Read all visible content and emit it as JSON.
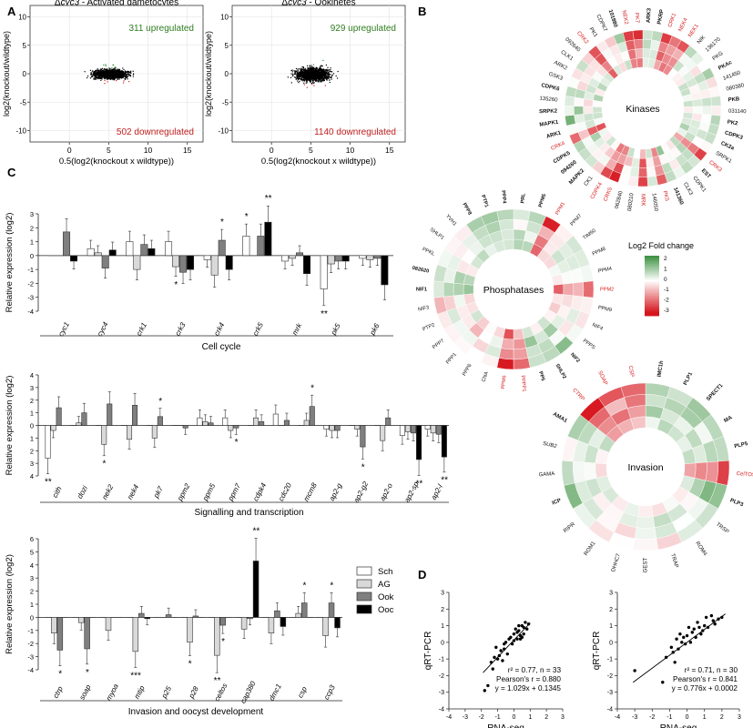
{
  "panel_labels": {
    "a": "A",
    "b": "B",
    "c": "C",
    "d": "D"
  },
  "panel_a": {
    "plots": [
      {
        "title_prefix": "Δ",
        "title_gene": "cyc3",
        "title_rest": " - Activated gametocytes",
        "up_text": "311 upregulated",
        "down_text": "502 downregulated",
        "ylabel": "log2(knockout/wildtype)",
        "xlabel": "0.5(log2(knockout x wildtype))",
        "xticks": [
          "0",
          "5",
          "10",
          "15"
        ],
        "yticks": [
          "10",
          "5",
          "0",
          "-5",
          "-10"
        ]
      },
      {
        "title_prefix": "Δ",
        "title_gene": "cyc3",
        "title_rest": " - Ookinetes",
        "up_text": "929 upregulated",
        "down_text": "1140 downregulated",
        "ylabel": "log2(knockout/wildtype)",
        "xlabel": "0.5(log2(knockout x wildtype))",
        "xticks": [
          "0",
          "5",
          "10",
          "15"
        ],
        "yticks": [
          "10",
          "5",
          "0",
          "-5",
          "-10"
        ]
      }
    ]
  },
  "panel_b": {
    "legend": {
      "title": "Log2 Fold change",
      "ticks": [
        "2",
        "1",
        "0",
        "-1",
        "-2",
        "-3"
      ]
    },
    "wheels": [
      {
        "name": "Kinases",
        "labels": [
          "ARK3",
          "PKRP",
          "CRK1",
          "NEK4",
          "NEK1",
          "NIK",
          "136170",
          "PKG",
          "PKAc",
          "141450",
          "080380",
          "PKB",
          "031140",
          "PK2",
          "CDPK3",
          "CK2a",
          "SRPK1",
          "CRK3",
          "EST",
          "CDPK1",
          "CLK3",
          "141360",
          "PK5",
          "146050",
          "MRK",
          "080210",
          "062840",
          "CRK5",
          "CDPK4",
          "CK1",
          "MAPK2",
          "094260",
          "CDPK5",
          "CRK4",
          "ARK1",
          "MAPK1",
          "SRPK2",
          "135260",
          "CDPK6",
          "GSK3",
          "ARK2",
          "CLK1",
          "092640",
          "CRK2",
          "PK1",
          "CDPK7",
          "101880",
          "NEK2",
          "PK7"
        ],
        "red": [
          "CRK1",
          "NEK4",
          "NEK1",
          "PK7",
          "NEK2",
          "CRK2",
          "CRK3",
          "PK5",
          "MRK",
          "CRK5",
          "CDPK4",
          "CRK4"
        ],
        "bold": [
          "ARK3",
          "PKRP",
          "PKAc",
          "PKB",
          "PK2",
          "CDPK3",
          "CK2a",
          "EST",
          "141360",
          "MAPK2",
          "094260",
          "CDPK5",
          "ARK1",
          "MAPK1",
          "SRPK2",
          "CDPK6",
          "101880"
        ]
      },
      {
        "name": "Phosphatases",
        "labels": [
          "PRL",
          "PPM5",
          "PPM1",
          "PPM7",
          "TIM50",
          "PPM8",
          "PPM4",
          "PPM2",
          "PPM9",
          "NIF4",
          "PPPS",
          "NIF2",
          "SHLP2",
          "PP5",
          "PPPP1",
          "PPM6",
          "CNA",
          "PPP6",
          "PPP1",
          "PPP7",
          "PTP2",
          "NIF3",
          "NIF1",
          "082620",
          "PPKL",
          "SHLP1",
          "YVH1",
          "PPP8",
          "PTP1",
          "PPP4"
        ],
        "red": [
          "PPM1",
          "PPM2",
          "PPPP1",
          "PPM6"
        ],
        "bold": [
          "PRL",
          "PPM5",
          "SHLP2",
          "NIF2",
          "PP5",
          "NIF1",
          "082620",
          "PPP8",
          "PTP1",
          "PPP4"
        ]
      },
      {
        "name": "Invasion",
        "labels": [
          "IMC1h",
          "PLP1",
          "SPECT1",
          "MA",
          "PLP5",
          "CelTOS",
          "PLP3",
          "TRSP",
          "ROM4",
          "TRAP",
          "GEST",
          "DHHC7",
          "ROM1",
          "RIPR",
          "ICP",
          "GAMA",
          "SUB2",
          "AMA1",
          "CTRP",
          "SOAP",
          "CSP"
        ],
        "red": [
          "CelTOS",
          "CTRP",
          "SOAP",
          "CSP"
        ],
        "bold": [
          "IMC1h",
          "PLP1",
          "SPECT1",
          "MA",
          "PLP5",
          "PLP3",
          "ICP",
          "AMA1"
        ]
      }
    ]
  },
  "panel_c": {
    "ylabel": "Relative expression (log2)",
    "ylabel_bottom": "Relative expression (log2)",
    "series": [
      "Sch",
      "AG",
      "Ook",
      "Ooc"
    ],
    "series_colors": [
      "#ffffff",
      "#d9d9d9",
      "#7f7f7f",
      "#000000"
    ],
    "groups": [
      {
        "title": "Cell cycle",
        "yticks": [
          "3",
          "2",
          "1",
          "0",
          "-1",
          "-2",
          "-3",
          "-4"
        ],
        "genes": [
          "cyc1",
          "cyc4",
          "crk1",
          "crk3",
          "crk4",
          "crk5",
          "mrk",
          "pk5",
          "pk6"
        ],
        "stars": [
          "*",
          "*",
          "**",
          "*",
          "**"
        ]
      },
      {
        "title": "Signalling and transcription",
        "yticks": [
          "4",
          "3",
          "2",
          "1",
          "0",
          "1",
          "2",
          "3",
          "4"
        ],
        "genes": [
          "cith",
          "dozi",
          "nek2",
          "nek4",
          "pk7",
          "ppm2",
          "ppm5",
          "ppm7",
          "cdpk4",
          "cdc20",
          "mcm8",
          "ap2-g",
          "ap2-g2",
          "ap2-o",
          "ap2-sp",
          "ap2-l"
        ],
        "stars": [
          "**",
          "*",
          "*",
          "*",
          "*",
          "*",
          "**",
          "**"
        ]
      },
      {
        "title": "Invasion and oocyst development",
        "yticks": [
          "6",
          "5",
          "4",
          "3",
          "2",
          "1",
          "0",
          "-1",
          "-2",
          "-3",
          "-4"
        ],
        "genes": [
          "ctrp",
          "soap",
          "myoa",
          "mtip",
          "p25",
          "p28",
          "celtos",
          "cap380",
          "dmc1",
          "csp",
          "ccp3"
        ],
        "stars": [
          "*",
          "*",
          "***",
          "*",
          "**",
          "*",
          "**",
          "*",
          "*"
        ]
      }
    ]
  },
  "chart_data": [
    {
      "type": "bar",
      "title": "Cell cycle",
      "ylabel": "Relative expression (log2)",
      "ylim": [
        -4,
        3
      ],
      "categories": [
        "cyc1",
        "cyc4",
        "crk1",
        "crk3",
        "crk4",
        "crk5",
        "mrk",
        "pk5",
        "pk6"
      ],
      "series": [
        {
          "name": "Sch",
          "values": [
            0.0,
            0.5,
            1.0,
            1.0,
            -0.3,
            1.4,
            -0.4,
            -2.4,
            -0.2
          ]
        },
        {
          "name": "AG",
          "values": [
            0.0,
            0.2,
            -1.0,
            -0.8,
            -1.4,
            0.0,
            -0.2,
            -0.6,
            -0.3
          ]
        },
        {
          "name": "Ook",
          "values": [
            1.7,
            -0.9,
            0.8,
            -1.2,
            1.1,
            1.4,
            0.2,
            -0.4,
            -0.2
          ]
        },
        {
          "name": "Ooc",
          "values": [
            -0.4,
            0.4,
            0.5,
            -1.0,
            -1.0,
            2.4,
            -1.3,
            -0.4,
            -2.1
          ]
        }
      ]
    },
    {
      "type": "bar",
      "title": "Signalling and transcription",
      "ylabel": "Relative expression (log2)",
      "ylim": [
        -4,
        4
      ],
      "categories": [
        "cith",
        "dozi",
        "nek2",
        "nek4",
        "pk7",
        "ppm2",
        "ppm5",
        "ppm7",
        "cdpk4",
        "cdc20",
        "mcm8",
        "ap2-g",
        "ap2-g2",
        "ap2-o",
        "ap2-sp",
        "ap2-l"
      ],
      "series": [
        {
          "name": "Sch",
          "values": [
            -2.6,
            0.0,
            0.0,
            0.0,
            0.0,
            0.0,
            0.6,
            0.6,
            0.0,
            0.9,
            0.0,
            -0.3,
            0.0,
            0.0,
            -0.8,
            -0.3
          ]
        },
        {
          "name": "AG",
          "values": [
            -0.4,
            0.2,
            -1.5,
            -1.1,
            -1.0,
            0.0,
            0.3,
            -0.4,
            0.6,
            0.0,
            0.4,
            -0.4,
            -0.3,
            -1.2,
            -0.5,
            -0.6
          ]
        },
        {
          "name": "Ook",
          "values": [
            1.4,
            1.0,
            1.7,
            1.6,
            0.7,
            -0.2,
            0.2,
            -0.2,
            0.3,
            0.4,
            1.5,
            -0.4,
            -1.7,
            0.6,
            -0.6,
            -0.7
          ]
        },
        {
          "name": "Ooc",
          "values": [
            0.0,
            0.0,
            0.0,
            0.0,
            0.0,
            0.0,
            0.0,
            0.0,
            0.0,
            0.0,
            0.0,
            0.0,
            0.0,
            0.0,
            -2.7,
            -2.5
          ]
        }
      ]
    },
    {
      "type": "bar",
      "title": "Invasion and oocyst development",
      "ylabel": "Relative expression (log2)",
      "ylim": [
        -4,
        6
      ],
      "categories": [
        "ctrp",
        "soap",
        "myoa",
        "mtip",
        "p25",
        "p28",
        "celtos",
        "cap380",
        "dmc1",
        "csp",
        "ccp3"
      ],
      "series": [
        {
          "name": "Sch",
          "values": [
            0.0,
            0.0,
            0.0,
            0.0,
            0.0,
            0.0,
            0.0,
            0.0,
            0.0,
            0.0,
            0.0
          ]
        },
        {
          "name": "AG",
          "values": [
            -1.2,
            -0.4,
            -1.0,
            -2.6,
            0.0,
            -1.9,
            -2.9,
            -0.9,
            -1.2,
            0.3,
            -1.4
          ]
        },
        {
          "name": "Ook",
          "values": [
            -2.5,
            -2.4,
            0.0,
            0.3,
            0.2,
            0.1,
            -0.6,
            -0.1,
            0.5,
            1.1,
            1.1
          ]
        },
        {
          "name": "Ooc",
          "values": [
            0.0,
            0.0,
            0.0,
            -0.1,
            0.0,
            0.0,
            0.0,
            4.3,
            -0.7,
            0.0,
            -0.8
          ]
        }
      ]
    },
    {
      "type": "scatter",
      "xlabel": "RNA-seq",
      "ylabel": "qRT-PCR",
      "xlim": [
        -4,
        3
      ],
      "ylim": [
        -4,
        3
      ],
      "stats": [
        "r² = 0.77, n = 33",
        "Pearson's r = 0.880",
        "y = 1.029x + 0.1345"
      ],
      "x": [
        -1.6,
        -1.4,
        -1.3,
        -1.2,
        -1.0,
        -0.9,
        -0.8,
        -0.7,
        -0.6,
        -0.5,
        -0.4,
        -0.3,
        -0.2,
        -0.1,
        0.0,
        0.0,
        0.1,
        0.2,
        0.2,
        0.3,
        0.4,
        0.5,
        0.5,
        0.6,
        0.7,
        0.8,
        -1.8,
        -0.6,
        0.3,
        0.6,
        0.9,
        -1.1,
        0.4
      ],
      "y": [
        -2.6,
        -1.2,
        -1.6,
        -0.9,
        -1.0,
        -0.8,
        -0.5,
        -1.1,
        -0.4,
        0.0,
        -0.7,
        0.2,
        0.3,
        -0.1,
        0.5,
        0.1,
        0.8,
        0.2,
        0.6,
        0.7,
        0.4,
        1.0,
        0.3,
        0.9,
        1.2,
        0.8,
        -2.9,
        -0.1,
        1.0,
        0.5,
        1.1,
        -0.3,
        0.2
      ]
    },
    {
      "type": "scatter",
      "xlabel": "RNA-seq",
      "ylabel": "qRT-PCR",
      "xlim": [
        -4,
        3
      ],
      "ylim": [
        -4,
        3
      ],
      "stats": [
        "r² = 0.71, n = 30",
        "Pearson's r = 0.841",
        "y = 0.776x + 0.0002"
      ],
      "x": [
        -3.0,
        -1.4,
        -1.2,
        -0.9,
        -0.8,
        -0.6,
        -0.5,
        -0.4,
        -0.3,
        -0.2,
        -0.1,
        0.0,
        0.1,
        0.2,
        0.3,
        0.4,
        0.5,
        0.6,
        0.7,
        0.8,
        1.0,
        1.1,
        1.2,
        1.4,
        1.6,
        1.8,
        2.0,
        -0.7,
        0.9,
        1.5
      ],
      "y": [
        -1.7,
        -2.4,
        -0.9,
        -0.3,
        -0.6,
        0.2,
        -0.4,
        0.5,
        0.0,
        0.3,
        -0.1,
        0.4,
        0.9,
        0.0,
        0.6,
        0.8,
        0.3,
        1.2,
        0.9,
        0.5,
        1.0,
        1.5,
        0.9,
        1.6,
        1.1,
        1.4,
        1.5,
        -1.2,
        0.7,
        1.3
      ]
    }
  ],
  "panel_d": {
    "ylabel": "qRT-PCR",
    "xlabel": "RNA-seq",
    "xticks": [
      "-4",
      "-3",
      "-2",
      "-1",
      "0",
      "1",
      "2",
      "3"
    ],
    "yticks": [
      "3",
      "2",
      "1",
      "0",
      "-1",
      "-2",
      "-3",
      "-4"
    ]
  }
}
